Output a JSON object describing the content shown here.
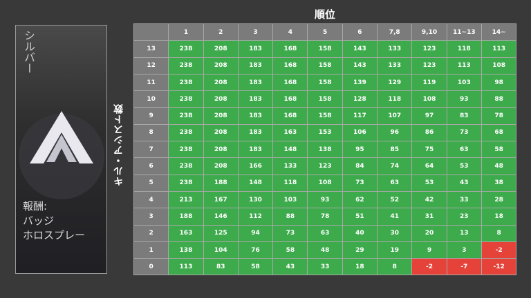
{
  "card": {
    "rank": "シルバー",
    "reward_label": "報酬:",
    "rewards": [
      "バッジ",
      "ホロスプレー"
    ]
  },
  "table": {
    "column_title": "順位",
    "row_title": "キル・アシスト数",
    "columns": [
      "1",
      "2",
      "3",
      "4",
      "5",
      "6",
      "7,8",
      "9,10",
      "11~13",
      "14~"
    ],
    "rows": [
      {
        "kills": 13,
        "points": [
          238,
          208,
          183,
          168,
          158,
          143,
          133,
          123,
          118,
          113
        ]
      },
      {
        "kills": 12,
        "points": [
          238,
          208,
          183,
          168,
          158,
          143,
          133,
          123,
          113,
          108
        ]
      },
      {
        "kills": 11,
        "points": [
          238,
          208,
          183,
          168,
          158,
          139,
          129,
          119,
          103,
          98
        ]
      },
      {
        "kills": 10,
        "points": [
          238,
          208,
          183,
          168,
          158,
          128,
          118,
          108,
          93,
          88
        ]
      },
      {
        "kills": 9,
        "points": [
          238,
          208,
          183,
          168,
          158,
          117,
          107,
          97,
          83,
          78
        ]
      },
      {
        "kills": 8,
        "points": [
          238,
          208,
          183,
          163,
          153,
          106,
          96,
          86,
          73,
          68
        ]
      },
      {
        "kills": 7,
        "points": [
          238,
          208,
          183,
          148,
          138,
          95,
          85,
          75,
          63,
          58
        ]
      },
      {
        "kills": 6,
        "points": [
          238,
          208,
          166,
          133,
          123,
          84,
          74,
          64,
          53,
          48
        ]
      },
      {
        "kills": 5,
        "points": [
          238,
          188,
          148,
          118,
          108,
          73,
          63,
          53,
          43,
          38
        ]
      },
      {
        "kills": 4,
        "points": [
          213,
          167,
          130,
          103,
          93,
          62,
          52,
          42,
          33,
          28
        ]
      },
      {
        "kills": 3,
        "points": [
          188,
          146,
          112,
          88,
          78,
          51,
          41,
          31,
          23,
          18
        ]
      },
      {
        "kills": 2,
        "points": [
          163,
          125,
          94,
          73,
          63,
          40,
          30,
          20,
          13,
          8
        ]
      },
      {
        "kills": 1,
        "points": [
          138,
          104,
          76,
          58,
          48,
          29,
          19,
          9,
          3,
          -2
        ]
      },
      {
        "kills": 0,
        "points": [
          113,
          83,
          58,
          43,
          33,
          18,
          8,
          -2,
          -7,
          -12
        ]
      }
    ]
  }
}
